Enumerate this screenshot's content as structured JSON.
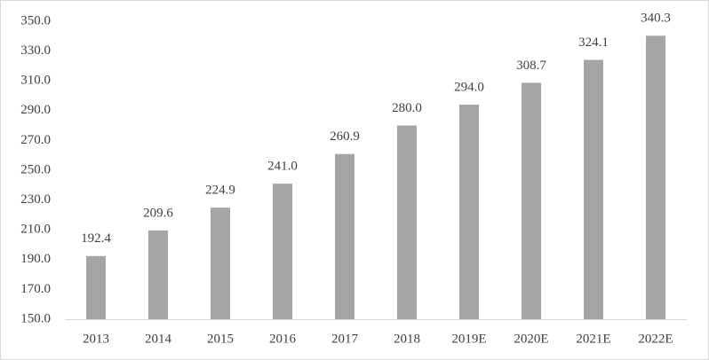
{
  "chart_data": {
    "type": "bar",
    "categories": [
      "2013",
      "2014",
      "2015",
      "2016",
      "2017",
      "2018",
      "2019E",
      "2020E",
      "2021E",
      "2022E"
    ],
    "values": [
      192.4,
      209.6,
      224.9,
      241.0,
      260.9,
      280.0,
      294.0,
      308.7,
      324.1,
      340.3
    ],
    "value_labels": [
      "192.4",
      "209.6",
      "224.9",
      "241.0",
      "260.9",
      "280.0",
      "294.0",
      "308.7",
      "324.1",
      "340.3"
    ],
    "color": "#a5a5a5",
    "ylim": [
      150,
      350
    ],
    "yticks": [
      {
        "value": 150,
        "label": "150.0"
      },
      {
        "value": 170,
        "label": "170.0"
      },
      {
        "value": 190,
        "label": "190.0"
      },
      {
        "value": 210,
        "label": "210.0"
      },
      {
        "value": 230,
        "label": "230.0"
      },
      {
        "value": 250,
        "label": "250.0"
      },
      {
        "value": 270,
        "label": "270.0"
      },
      {
        "value": 290,
        "label": "290.0"
      },
      {
        "value": 310,
        "label": "310.0"
      },
      {
        "value": 330,
        "label": "330.0"
      },
      {
        "value": 350,
        "label": "350.0"
      }
    ],
    "grid": false
  }
}
